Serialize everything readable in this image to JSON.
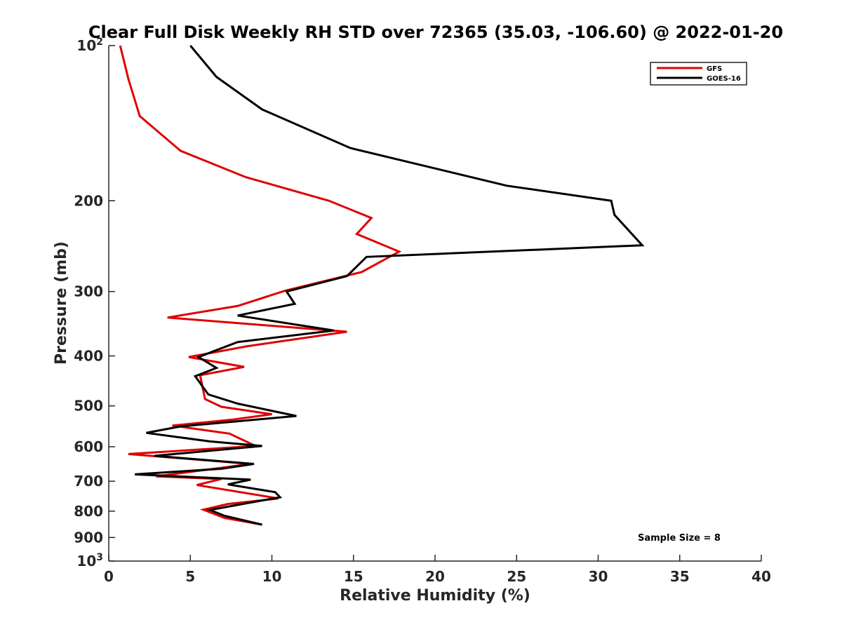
{
  "chart_data": {
    "type": "line",
    "title": "Clear Full Disk Weekly RH STD over 72365 (35.03, -106.60) @ 2022-01-20",
    "xlabel": "Relative Humidity (%)",
    "ylabel": "Pressure (mb)",
    "xlim": [
      0,
      40
    ],
    "ylim": [
      100,
      1000
    ],
    "y_scale": "log",
    "y_reversed": true,
    "grid": false,
    "legend_position": "top-right",
    "x_ticks": [
      {
        "value": 0,
        "label": "0"
      },
      {
        "value": 5,
        "label": "5"
      },
      {
        "value": 10,
        "label": "10"
      },
      {
        "value": 15,
        "label": "15"
      },
      {
        "value": 20,
        "label": "20"
      },
      {
        "value": 25,
        "label": "25"
      },
      {
        "value": 30,
        "label": "30"
      },
      {
        "value": 35,
        "label": "35"
      },
      {
        "value": 40,
        "label": "40"
      }
    ],
    "y_ticks": [
      {
        "value": 100,
        "base": "10",
        "exp": "2"
      },
      {
        "value": 200,
        "label": "200"
      },
      {
        "value": 300,
        "label": "300"
      },
      {
        "value": 400,
        "label": "400"
      },
      {
        "value": 500,
        "label": "500"
      },
      {
        "value": 600,
        "label": "600"
      },
      {
        "value": 700,
        "label": "700"
      },
      {
        "value": 800,
        "label": "800"
      },
      {
        "value": 900,
        "label": "900"
      },
      {
        "value": 1000,
        "base": "10",
        "exp": "3"
      }
    ],
    "annotations": [
      {
        "text": "Sample Size = 8",
        "position": "bottom-right"
      }
    ],
    "series": [
      {
        "name": "GFS",
        "color": "#e00000",
        "points": [
          [
            0.7,
            100
          ],
          [
            1.2,
            116
          ],
          [
            1.9,
            137
          ],
          [
            4.4,
            160
          ],
          [
            8.4,
            180
          ],
          [
            13.5,
            200
          ],
          [
            16.1,
            216
          ],
          [
            15.2,
            232
          ],
          [
            17.8,
            251
          ],
          [
            15.5,
            275
          ],
          [
            10.8,
            299
          ],
          [
            7.9,
            320
          ],
          [
            3.6,
            337
          ],
          [
            14.6,
            359
          ],
          [
            8.5,
            383
          ],
          [
            4.9,
            402
          ],
          [
            8.3,
            420
          ],
          [
            5.6,
            436
          ],
          [
            5.9,
            485
          ],
          [
            6.9,
            502
          ],
          [
            10.0,
            519
          ],
          [
            7.5,
            532
          ],
          [
            3.9,
            546
          ],
          [
            7.4,
            566
          ],
          [
            9.0,
            598
          ],
          [
            1.2,
            620
          ],
          [
            8.7,
            648
          ],
          [
            2.9,
            685
          ],
          [
            6.9,
            693
          ],
          [
            5.4,
            712
          ],
          [
            10.4,
            756
          ],
          [
            7.3,
            775
          ],
          [
            5.8,
            795
          ],
          [
            7.1,
            825
          ],
          [
            9.4,
            850
          ]
        ]
      },
      {
        "name": "GOES-16",
        "color": "#000000",
        "points": [
          [
            5.0,
            100
          ],
          [
            6.6,
            115
          ],
          [
            9.4,
            133
          ],
          [
            14.8,
            158
          ],
          [
            24.4,
            187
          ],
          [
            30.8,
            200
          ],
          [
            31.0,
            213
          ],
          [
            32.7,
            244
          ],
          [
            15.8,
            257
          ],
          [
            14.6,
            280
          ],
          [
            10.9,
            300
          ],
          [
            11.4,
            317
          ],
          [
            7.9,
            334
          ],
          [
            13.8,
            357
          ],
          [
            7.9,
            376
          ],
          [
            5.5,
            402
          ],
          [
            6.6,
            422
          ],
          [
            5.3,
            438
          ],
          [
            6.1,
            475
          ],
          [
            7.9,
            495
          ],
          [
            11.5,
            523
          ],
          [
            4.4,
            548
          ],
          [
            2.3,
            564
          ],
          [
            6.2,
            586
          ],
          [
            9.4,
            598
          ],
          [
            2.8,
            625
          ],
          [
            8.9,
            648
          ],
          [
            6.9,
            662
          ],
          [
            1.6,
            679
          ],
          [
            8.7,
            695
          ],
          [
            7.3,
            710
          ],
          [
            10.2,
            735
          ],
          [
            10.5,
            752
          ],
          [
            8.2,
            775
          ],
          [
            6.2,
            796
          ],
          [
            7.1,
            817
          ],
          [
            9.4,
            850
          ]
        ]
      }
    ]
  }
}
